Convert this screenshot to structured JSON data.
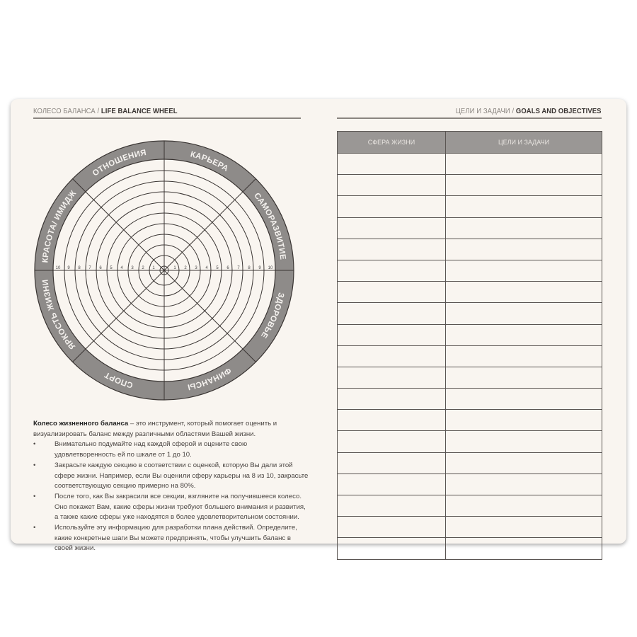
{
  "left_header": {
    "ru": "КОЛЕСО БАЛАНСА /",
    "en": "LIFE BALANCE WHEEL"
  },
  "right_header": {
    "ru": "ЦЕЛИ И ЗАДАЧИ /",
    "en": "GOALS AND OBJECTIVES"
  },
  "wheel": {
    "sectors": [
      "КАРЬЕРА",
      "САМОРАЗВИТИЕ",
      "ЗДОРОВЬЕ",
      "ФИНАНСЫ",
      "СПОРТ",
      "ЯРКОСТЬ ЖИЗНИ",
      "КРАСОТА/ ИМИДЖ",
      "ОТНОШЕНИЯ"
    ],
    "scale": [
      "1",
      "2",
      "3",
      "4",
      "5",
      "6",
      "7",
      "8",
      "9",
      "10"
    ],
    "ring_color": "#8e8b89",
    "line_color": "#3a3533"
  },
  "description": {
    "title": "Колесо жизненного баланса",
    "intro": " – это инструмент, который помогает оценить и визуализировать баланс между различными областями Вашей жизни.",
    "bullets": [
      "Внимательно подумайте над каждой сферой и оцените свою удовлетворенность ей по шкале от 1 до 10.",
      "Закрасьте каждую секцию в соответствии с оценкой, которую Вы дали этой сфере жизни. Например, если Вы оценили сферу карьеры на 8 из 10, закрасьте соответствующую секцию примерно на 80%.",
      "После того, как Вы закрасили все секции, взгляните на получившееся колесо. Оно покажет Вам, какие сферы жизни требуют большего внимания и развития, а также какие сферы уже находятся в более удовлетворительном состоянии.",
      "Используйте эту информацию для разработки плана действий. Определите, какие конкретные шаги Вы можете предпринять, чтобы улучшить баланс в своей жизни."
    ]
  },
  "goals_table": {
    "headers": [
      "СФЕРА ЖИЗНИ",
      "ЦЕЛИ И ЗАДАЧИ"
    ],
    "empty_rows": 19
  }
}
